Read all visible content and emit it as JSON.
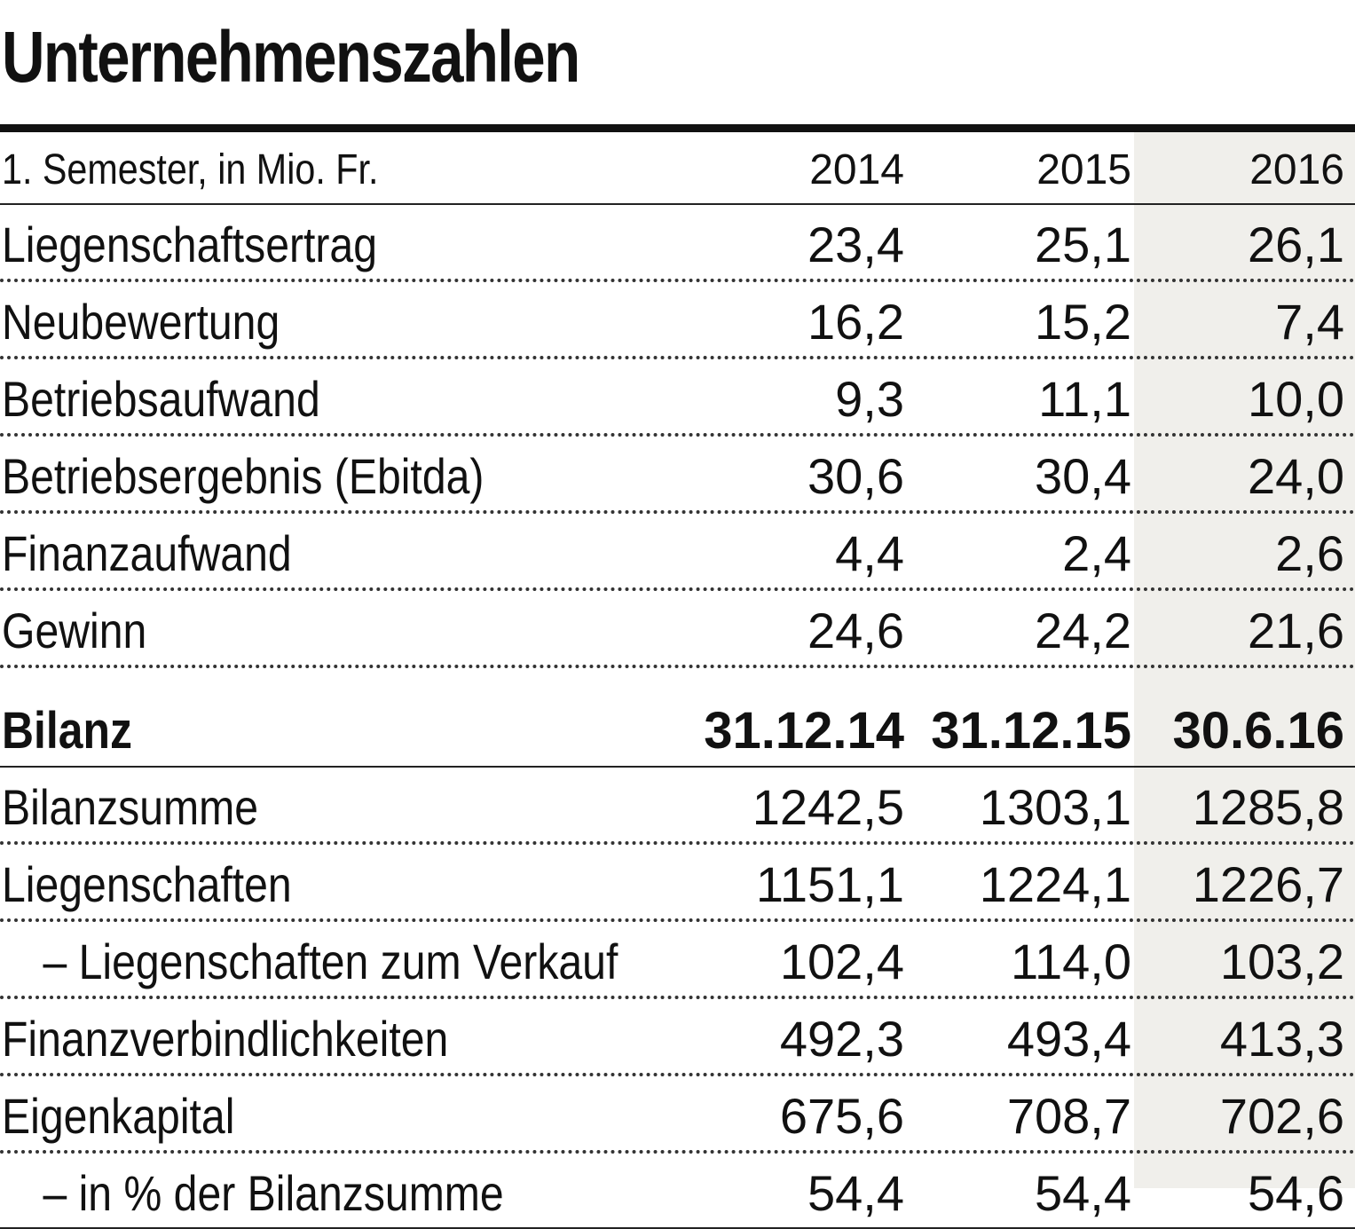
{
  "title": "Unternehmenszahlen",
  "header": {
    "label": "1. Semester, in Mio. Fr.",
    "cols": [
      "2014",
      "2015",
      "2016"
    ]
  },
  "rows": [
    {
      "label": "Liegenschaftsertrag",
      "values": [
        "23,4",
        "25,1",
        "26,1"
      ]
    },
    {
      "label": "Neubewertung",
      "values": [
        "16,2",
        "15,2",
        "7,4"
      ]
    },
    {
      "label": "Betriebsaufwand",
      "values": [
        "9,3",
        "11,1",
        "10,0"
      ]
    },
    {
      "label": "Betriebsergebnis (Ebitda)",
      "values": [
        "30,6",
        "30,4",
        "24,0"
      ]
    },
    {
      "label": "Finanzaufwand",
      "values": [
        "4,4",
        "2,4",
        "2,6"
      ]
    },
    {
      "label": "Gewinn",
      "values": [
        "24,6",
        "24,2",
        "21,6"
      ]
    }
  ],
  "bilanz": {
    "label": "Bilanz",
    "cols": [
      "31.12.14",
      "31.12.15",
      "30.6.16"
    ]
  },
  "bilanz_rows": [
    {
      "label": "Bilanzsumme",
      "values": [
        "1242,5",
        "1303,1",
        "1285,8"
      ]
    },
    {
      "label": "Liegenschaften",
      "values": [
        "1151,1",
        "1224,1",
        "1226,7"
      ]
    },
    {
      "label": "– Liegenschaften zum Verkauf",
      "values": [
        "102,4",
        "114,0",
        "103,2"
      ]
    },
    {
      "label": "Finanzverbindlichkeiten",
      "values": [
        "492,3",
        "493,4",
        "413,3"
      ]
    },
    {
      "label": "Eigenkapital",
      "values": [
        "675,6",
        "708,7",
        "702,6"
      ]
    },
    {
      "label": "– in % der Bilanzsumme",
      "values": [
        "54,4",
        "54,4",
        "54,6"
      ]
    }
  ],
  "colors": {
    "highlight_column": "#f0efeb",
    "text": "#111111"
  }
}
